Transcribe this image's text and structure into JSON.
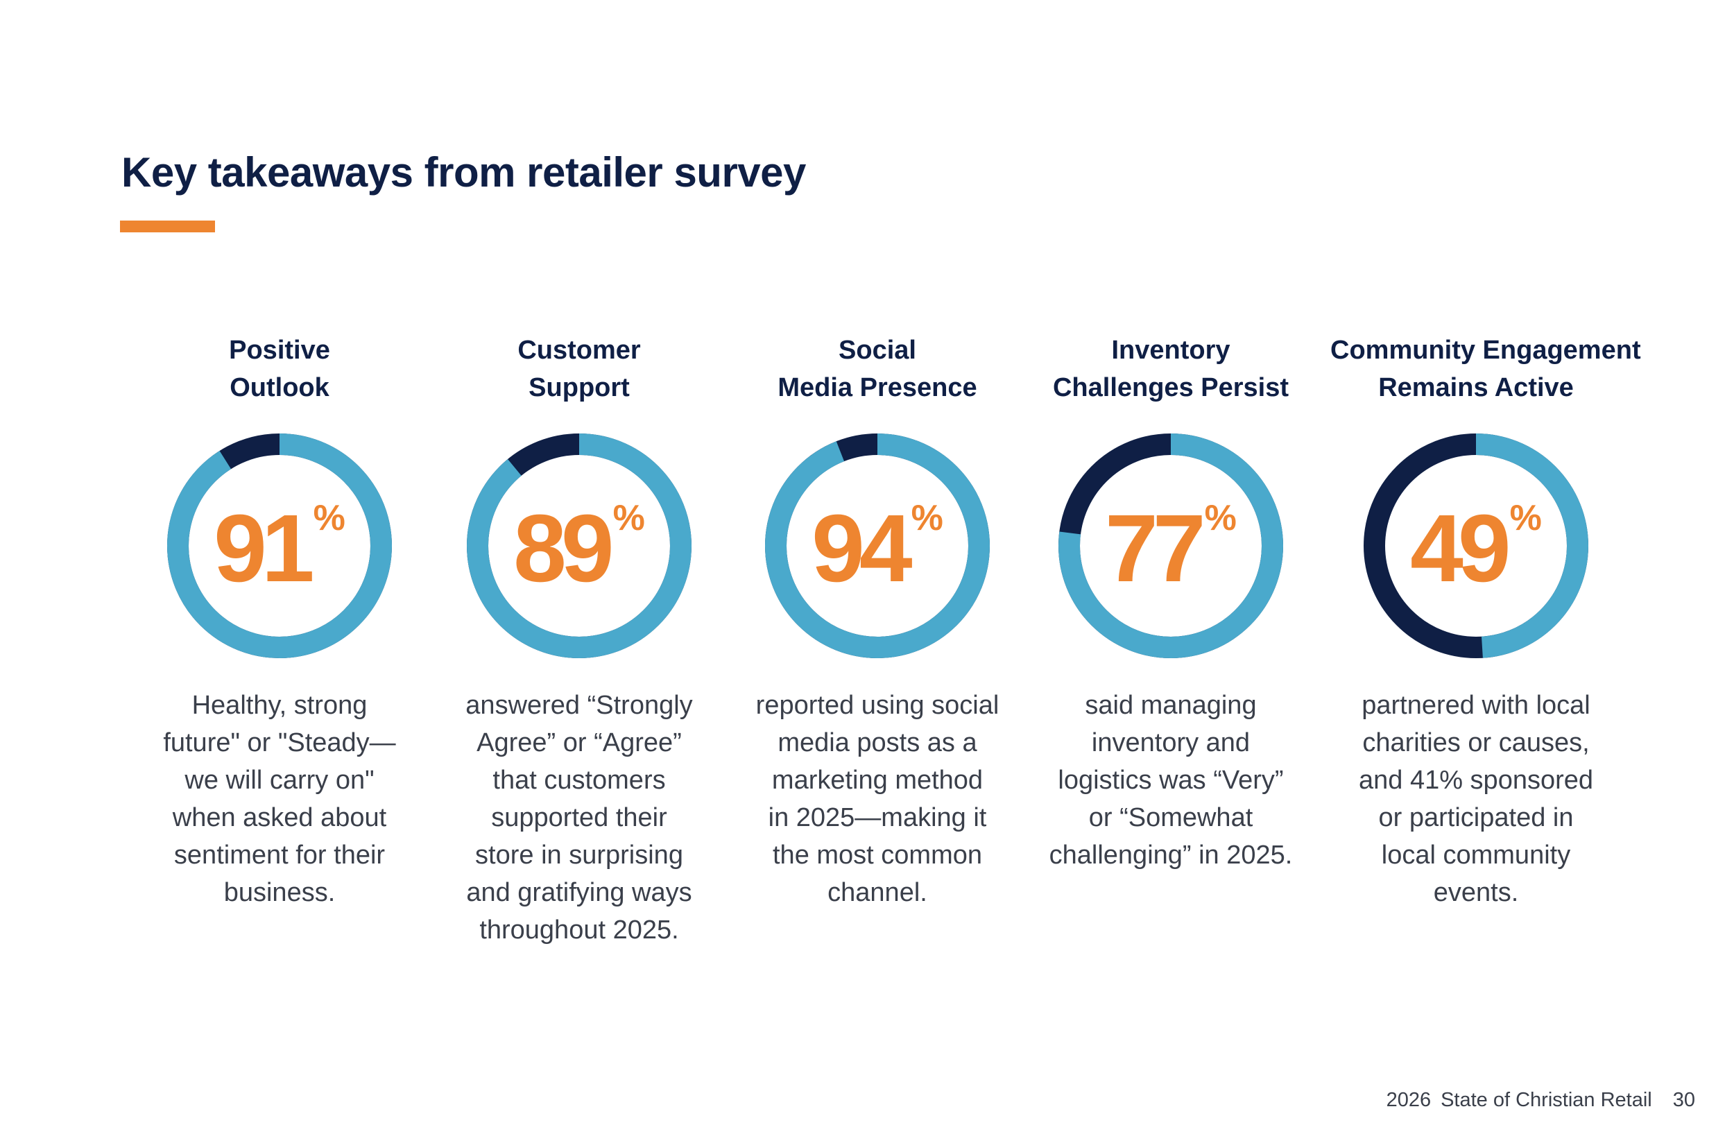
{
  "page": {
    "title": "Key takeaways from retailer survey",
    "accent_color": "#ee8530",
    "ring_color": "#4aa9cc",
    "ring_rest_color": "#0f1f45"
  },
  "stats": [
    {
      "heading": [
        "Positive",
        "Outlook"
      ],
      "value": 91,
      "value_label": "91",
      "unit": "%",
      "description": [
        "Healthy, strong",
        "future\" or \"Steady—",
        "we will carry on\"",
        "when asked about",
        "sentiment for their",
        "business."
      ]
    },
    {
      "heading": [
        "Customer",
        "Support"
      ],
      "value": 89,
      "value_label": "89",
      "unit": "%",
      "description": [
        "answered “Strongly",
        "Agree” or “Agree”",
        "that customers",
        "supported their",
        "store in surprising",
        "and gratifying ways",
        "throughout 2025."
      ]
    },
    {
      "heading": [
        "Social",
        "Media Presence"
      ],
      "value": 94,
      "value_label": "94",
      "unit": "%",
      "description": [
        "reported using social",
        "media posts as a",
        "marketing method",
        "in 2025—making it",
        "the most common",
        "channel."
      ]
    },
    {
      "heading": [
        "Inventory",
        "Challenges Persist"
      ],
      "value": 77,
      "value_label": "77",
      "unit": "%",
      "description": [
        "said managing",
        "inventory and",
        "logistics was “Very”",
        "or “Somewhat",
        "challenging” in 2025."
      ]
    },
    {
      "heading": [
        "Community Engagement",
        "Remains Active"
      ],
      "value": 49,
      "value_label": "49",
      "unit": "%",
      "description": [
        "partnered with local",
        "charities or causes,",
        "and 41% sponsored",
        "or participated in",
        "local community",
        "events."
      ]
    }
  ],
  "footer": {
    "year": "2026",
    "publication": "State of Christian Retail",
    "page_number": "30"
  }
}
